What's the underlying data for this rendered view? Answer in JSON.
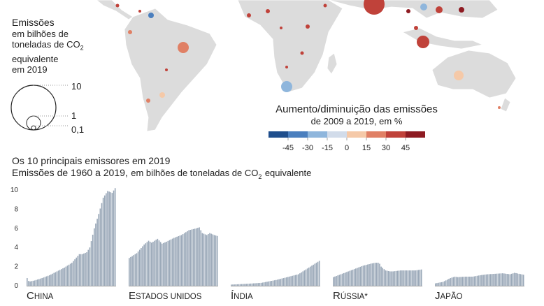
{
  "size_legend": {
    "title": "Emissões",
    "line1": "em bilhões de",
    "line2": "toneladas de CO",
    "line2_sub": "2",
    "line3": "equivalente",
    "line4": "em 2019",
    "levels": [
      "10",
      "1",
      "0,1"
    ]
  },
  "color_legend": {
    "title": "Aumento/diminuição das emissões",
    "subtitle": "de 2009 a 2019, em %",
    "ticks": [
      "-45",
      "-30",
      "-15",
      "0",
      "15",
      "30",
      "45"
    ],
    "colors": [
      "#1f4e8c",
      "#4b7fbe",
      "#8fb6dc",
      "#d2dcea",
      "#f5c9a8",
      "#e08065",
      "#c0423a",
      "#8e1b22"
    ]
  },
  "chart_header": {
    "line1": "Os 10 principais emissores em 2019",
    "line2_a": "Emissões de 1960 a 2019,",
    "line2_b": "em bilhões de toneladas de CO",
    "line2_sub": "2",
    "line2_c": "equivalente"
  },
  "chart_data": {
    "type": "bar",
    "x_range": [
      1960,
      2019
    ],
    "ylim": [
      0,
      10
    ],
    "yticks": [
      "0",
      "2",
      "4",
      "6",
      "8",
      "10"
    ],
    "bar_color": "#9aa8b8",
    "series": [
      {
        "name": "China",
        "anchors": [
          [
            1960,
            0.8
          ],
          [
            1961,
            0.5
          ],
          [
            1962,
            0.45
          ],
          [
            1965,
            0.55
          ],
          [
            1970,
            0.8
          ],
          [
            1975,
            1.1
          ],
          [
            1980,
            1.5
          ],
          [
            1985,
            1.9
          ],
          [
            1990,
            2.4
          ],
          [
            1995,
            3.3
          ],
          [
            1997,
            3.3
          ],
          [
            2000,
            3.5
          ],
          [
            2002,
            4.0
          ],
          [
            2005,
            6.0
          ],
          [
            2008,
            7.5
          ],
          [
            2011,
            9.2
          ],
          [
            2014,
            9.9
          ],
          [
            2017,
            9.7
          ],
          [
            2019,
            10.2
          ]
        ]
      },
      {
        "name": "Estados Unidos",
        "anchors": [
          [
            1960,
            2.9
          ],
          [
            1965,
            3.4
          ],
          [
            1970,
            4.3
          ],
          [
            1973,
            4.7
          ],
          [
            1975,
            4.5
          ],
          [
            1979,
            4.9
          ],
          [
            1982,
            4.4
          ],
          [
            1985,
            4.6
          ],
          [
            1990,
            5.0
          ],
          [
            1995,
            5.3
          ],
          [
            2000,
            5.8
          ],
          [
            2005,
            6.0
          ],
          [
            2007,
            6.1
          ],
          [
            2009,
            5.5
          ],
          [
            2012,
            5.3
          ],
          [
            2014,
            5.5
          ],
          [
            2017,
            5.3
          ],
          [
            2019,
            5.2
          ]
        ]
      },
      {
        "name": "Índia",
        "anchors": [
          [
            1960,
            0.12
          ],
          [
            1970,
            0.2
          ],
          [
            1980,
            0.3
          ],
          [
            1990,
            0.6
          ],
          [
            2000,
            1.0
          ],
          [
            2005,
            1.2
          ],
          [
            2010,
            1.7
          ],
          [
            2015,
            2.2
          ],
          [
            2019,
            2.6
          ]
        ]
      },
      {
        "name": "Rússia*",
        "anchors": [
          [
            1960,
            0.9
          ],
          [
            1965,
            1.2
          ],
          [
            1970,
            1.5
          ],
          [
            1975,
            1.8
          ],
          [
            1980,
            2.1
          ],
          [
            1985,
            2.3
          ],
          [
            1988,
            2.4
          ],
          [
            1990,
            2.4
          ],
          [
            1991,
            2.3
          ],
          [
            1992,
            2.0
          ],
          [
            1995,
            1.6
          ],
          [
            1998,
            1.5
          ],
          [
            2000,
            1.5
          ],
          [
            2005,
            1.6
          ],
          [
            2010,
            1.6
          ],
          [
            2015,
            1.6
          ],
          [
            2019,
            1.7
          ]
        ]
      },
      {
        "name": "Japão",
        "anchors": [
          [
            1960,
            0.25
          ],
          [
            1965,
            0.4
          ],
          [
            1970,
            0.8
          ],
          [
            1973,
            0.95
          ],
          [
            1975,
            0.9
          ],
          [
            1980,
            0.95
          ],
          [
            1985,
            0.95
          ],
          [
            1990,
            1.1
          ],
          [
            1995,
            1.2
          ],
          [
            2000,
            1.25
          ],
          [
            2005,
            1.3
          ],
          [
            2010,
            1.2
          ],
          [
            2013,
            1.35
          ],
          [
            2016,
            1.25
          ],
          [
            2019,
            1.15
          ]
        ]
      }
    ]
  }
}
